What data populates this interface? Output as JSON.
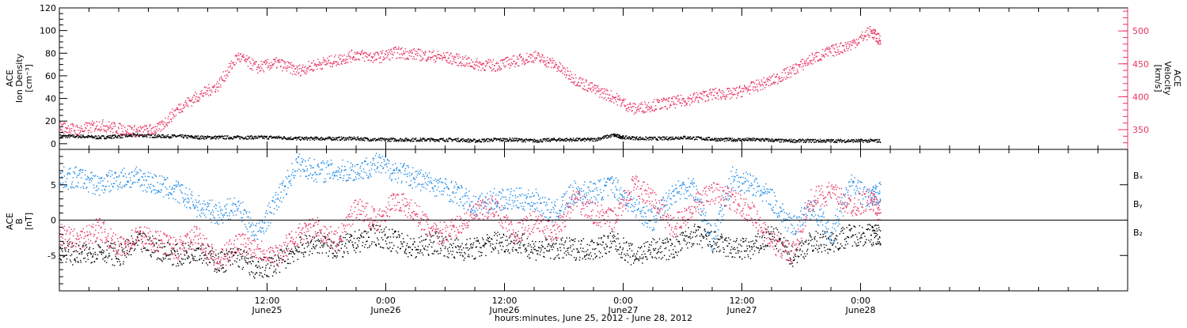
{
  "colors": {
    "black": "#000000",
    "red": "#e8335f",
    "blue": "#1f8ae6"
  },
  "x_axis": {
    "title": "hours:minutes, June 25, 2012 - June 28, 2012",
    "range_hours": [
      -9,
      99
    ],
    "ticks": [
      {
        "hour": 12,
        "time": "12:00",
        "date": "June25"
      },
      {
        "hour": 24,
        "time": "0:00",
        "date": "June26"
      },
      {
        "hour": 36,
        "time": "12:00",
        "date": "June26"
      },
      {
        "hour": 48,
        "time": "0:00",
        "date": "June27"
      },
      {
        "hour": 60,
        "time": "12:00",
        "date": "June27"
      },
      {
        "hour": 72,
        "time": "0:00",
        "date": "June28"
      }
    ]
  },
  "chart_data": [
    {
      "type": "scatter",
      "panel": "top",
      "ylabel_left": [
        "ACE",
        "Ion Density",
        "[cm⁻³]"
      ],
      "ylabel_right": [
        "ACE",
        "Velocity",
        "[km/s]"
      ],
      "ylim_left": [
        -5,
        120
      ],
      "yticks_left": [
        0,
        20,
        40,
        60,
        80,
        100,
        120
      ],
      "ylim_right": [
        320,
        535
      ],
      "yticks_right": [
        350,
        400,
        450,
        500
      ],
      "series": [
        {
          "axis": "left",
          "color": "#000000",
          "x_hours": [
            -9,
            -7,
            -5,
            -3,
            -1,
            1,
            3,
            5,
            7,
            9,
            11,
            13,
            15,
            17,
            19,
            21,
            23,
            25,
            27,
            29,
            31,
            33,
            35,
            37,
            39,
            41,
            43,
            45,
            47,
            48,
            50,
            52,
            54,
            56,
            58,
            60,
            62,
            64,
            66,
            68,
            70,
            72,
            74
          ],
          "y": [
            7,
            7,
            6,
            7,
            8,
            7,
            7,
            6,
            6,
            6,
            6,
            6,
            5,
            5,
            5,
            5,
            4,
            4,
            4,
            4,
            4,
            3,
            4,
            4,
            3,
            4,
            4,
            4,
            8,
            6,
            5,
            5,
            6,
            5,
            4,
            4,
            4,
            3,
            3,
            3,
            3,
            3,
            3
          ]
        },
        {
          "axis": "right",
          "color": "#e8335f",
          "x_hours": [
            -9,
            -7,
            -5,
            -3,
            -1,
            1,
            3,
            5,
            7,
            9,
            11,
            13,
            15,
            17,
            19,
            21,
            23,
            25,
            27,
            29,
            31,
            33,
            35,
            37,
            39,
            41,
            43,
            45,
            47,
            49,
            51,
            53,
            55,
            57,
            59,
            61,
            63,
            65,
            67,
            69,
            71,
            73,
            74
          ],
          "y": [
            355,
            350,
            358,
            352,
            348,
            352,
            383,
            402,
            418,
            462,
            445,
            452,
            440,
            450,
            456,
            465,
            460,
            468,
            465,
            462,
            458,
            450,
            448,
            455,
            462,
            450,
            428,
            412,
            400,
            382,
            388,
            392,
            398,
            405,
            405,
            415,
            425,
            440,
            458,
            470,
            480,
            500,
            485
          ]
        }
      ]
    },
    {
      "type": "scatter",
      "panel": "bottom",
      "ylabel": [
        "ACE",
        "B",
        "[nT]"
      ],
      "ylim": [
        -10,
        10
      ],
      "yticks": [
        -5,
        0,
        5
      ],
      "zero_line": true,
      "legend": [
        "Bₓ",
        "Bᵧ",
        "B₂"
      ],
      "series": [
        {
          "name": "Bx",
          "color": "#000000",
          "x_hours": [
            -9,
            -7,
            -5,
            -3,
            -1,
            1,
            3,
            5,
            7,
            9,
            11,
            13,
            15,
            17,
            19,
            21,
            23,
            25,
            27,
            29,
            31,
            33,
            35,
            37,
            39,
            41,
            43,
            45,
            47,
            49,
            51,
            53,
            55,
            57,
            59,
            61,
            63,
            65,
            67,
            69,
            71,
            73,
            74
          ],
          "y": [
            -4,
            -5,
            -4,
            -5,
            -3,
            -4,
            -5,
            -4,
            -6,
            -5,
            -7,
            -6,
            -4,
            -3,
            -4,
            -3,
            -2,
            -3,
            -4,
            -3,
            -4,
            -4,
            -3,
            -3,
            -4,
            -4,
            -4,
            -4,
            -3,
            -5,
            -4,
            -4,
            -2,
            -3,
            -4,
            -4,
            -2,
            -5,
            -3,
            -3,
            -2,
            -2,
            -2
          ]
        },
        {
          "name": "By",
          "color": "#1f8ae6",
          "x_hours": [
            -9,
            -7,
            -5,
            -3,
            -1,
            1,
            3,
            5,
            7,
            9,
            11,
            13,
            15,
            17,
            19,
            21,
            23,
            25,
            27,
            29,
            31,
            33,
            35,
            37,
            39,
            41,
            43,
            45,
            47,
            49,
            51,
            53,
            55,
            57,
            59,
            61,
            63,
            65,
            67,
            69,
            71,
            73,
            74
          ],
          "y": [
            6,
            6,
            5,
            6,
            6,
            5,
            4,
            2,
            1,
            2,
            -2,
            3,
            8,
            7,
            7,
            7,
            8,
            7,
            6,
            5,
            4,
            2,
            3,
            3,
            3,
            1,
            4,
            4,
            5,
            2,
            0,
            4,
            5,
            -3,
            6,
            5,
            3,
            -1,
            2,
            -2,
            5,
            3,
            4
          ]
        },
        {
          "name": "Bz",
          "color": "#e8335f",
          "x_hours": [
            -9,
            -7,
            -5,
            -3,
            -1,
            1,
            3,
            5,
            7,
            9,
            11,
            13,
            15,
            17,
            19,
            21,
            23,
            25,
            27,
            29,
            31,
            33,
            35,
            37,
            39,
            41,
            43,
            45,
            47,
            49,
            51,
            53,
            55,
            57,
            59,
            61,
            63,
            65,
            67,
            69,
            71,
            73,
            74
          ],
          "y": [
            -2,
            -3,
            -1,
            -4,
            -2,
            -3,
            -4,
            -2,
            -6,
            -3,
            -4,
            -5,
            -2,
            -1,
            -3,
            2,
            0,
            3,
            1,
            -2,
            -1,
            1,
            2,
            -2,
            0,
            -2,
            3,
            1,
            0,
            5,
            3,
            -1,
            2,
            4,
            3,
            1,
            -3,
            -5,
            3,
            4,
            2,
            3,
            1
          ]
        }
      ]
    }
  ]
}
